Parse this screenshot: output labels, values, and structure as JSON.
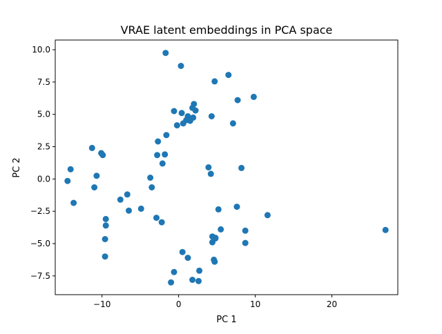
{
  "chart_data": {
    "type": "scatter",
    "title": "VRAE latent embeddings in PCA space",
    "xlabel": "PC 1",
    "ylabel": "PC 2",
    "xlim": [
      -16.1,
      28.6
    ],
    "ylim": [
      -8.95,
      10.75
    ],
    "x_ticks": [
      -10,
      0,
      10,
      20
    ],
    "x_tick_labels": [
      "−10",
      "0",
      "10",
      "20"
    ],
    "y_ticks": [
      -7.5,
      -5.0,
      -2.5,
      0.0,
      2.5,
      5.0,
      7.5,
      10.0
    ],
    "y_tick_labels": [
      "−7.5",
      "−5.0",
      "−2.5",
      "0.0",
      "2.5",
      "5.0",
      "7.5",
      "10.0"
    ],
    "grid": false,
    "legend": "none",
    "marker_color": "#1f77b4",
    "series": [
      {
        "x": [
          -1.7,
          0.3,
          6.5,
          4.7,
          9.8,
          7.7,
          2.0,
          -0.6,
          0.4,
          1.8,
          2.2,
          1.2,
          1.0,
          1.9,
          1.5,
          0.6,
          -0.2,
          4.3,
          7.1,
          -1.6,
          -2.7,
          -2.8,
          -1.8,
          -2.1,
          -11.3,
          -10.1,
          -9.9,
          -14.1,
          -14.5,
          -10.7,
          -11.0,
          -13.7,
          -3.7,
          -3.5,
          -6.7,
          -7.6,
          -6.5,
          -4.9,
          -9.5,
          -9.5,
          -2.9,
          -2.2,
          -9.6,
          -9.6,
          3.9,
          4.2,
          8.2,
          7.6,
          5.2,
          11.6,
          5.5,
          8.7,
          8.7,
          4.4,
          4.4,
          4.8,
          4.8,
          0.5,
          1.2,
          4.6,
          4.7,
          -0.6,
          2.7,
          1.8,
          2.6,
          -1.0,
          27.0
        ],
        "y": [
          9.75,
          8.75,
          8.05,
          7.55,
          6.35,
          6.1,
          5.8,
          5.25,
          5.1,
          5.5,
          5.3,
          4.85,
          4.55,
          4.75,
          4.5,
          4.3,
          4.15,
          4.85,
          4.3,
          3.4,
          2.9,
          1.85,
          1.9,
          1.2,
          2.4,
          2.0,
          1.85,
          0.75,
          -0.15,
          0.25,
          -0.65,
          -1.85,
          0.1,
          -0.65,
          -1.2,
          -1.6,
          -2.45,
          -2.3,
          -3.1,
          -3.6,
          -3.0,
          -3.35,
          -4.65,
          -6.0,
          0.9,
          0.4,
          0.85,
          -2.15,
          -2.35,
          -2.8,
          -3.9,
          -4.0,
          -4.95,
          -4.45,
          -4.9,
          -4.55,
          -4.6,
          -5.65,
          -6.1,
          -6.25,
          -6.4,
          -7.2,
          -7.1,
          -7.8,
          -7.9,
          -8.0,
          -3.95
        ]
      }
    ]
  }
}
